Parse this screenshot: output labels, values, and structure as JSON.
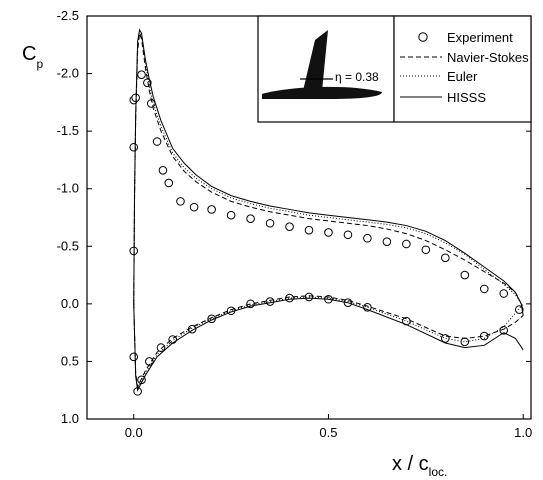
{
  "chart_data": {
    "type": "line",
    "title": "",
    "ylabel_main": "C",
    "ylabel_sub": "p",
    "xlabel_main": "x / c",
    "xlabel_sub": "loc.",
    "y_inverted": true,
    "xlim": [
      -0.12,
      1.02
    ],
    "ylim": [
      -2.5,
      1.0
    ],
    "xticks": [
      0.0,
      0.5,
      1.0
    ],
    "xtick_labels": [
      "0.0",
      "0.5",
      "1.0"
    ],
    "yticks": [
      -2.5,
      -2.0,
      -1.5,
      -1.0,
      -0.5,
      0.0,
      0.5,
      1.0
    ],
    "ytick_labels": [
      "-2.5",
      "-2.0",
      "-1.5",
      "-1.0",
      "-0.5",
      "0.0",
      "0.5",
      "1.0"
    ],
    "grid": false,
    "legend_position": "top-right",
    "inset_label": "η = 0.38",
    "series": [
      {
        "name": "Experiment",
        "style": "circle-markers",
        "upper": {
          "x": [
            0.0,
            0.0,
            0.0,
            0.005,
            0.02,
            0.035,
            0.045,
            0.06,
            0.075,
            0.09,
            0.12,
            0.155,
            0.2,
            0.25,
            0.3,
            0.35,
            0.4,
            0.45,
            0.5,
            0.55,
            0.6,
            0.65,
            0.7,
            0.75,
            0.8,
            0.85,
            0.9,
            0.95,
            0.99
          ],
          "y": [
            -0.46,
            -1.36,
            -1.77,
            -1.79,
            -1.99,
            -1.92,
            -1.74,
            -1.41,
            -1.16,
            -1.05,
            -0.89,
            -0.84,
            -0.82,
            -0.77,
            -0.74,
            -0.7,
            -0.67,
            -0.64,
            -0.62,
            -0.6,
            -0.57,
            -0.54,
            -0.52,
            -0.47,
            -0.4,
            -0.25,
            -0.13,
            -0.09,
            0.05
          ]
        },
        "lower": {
          "x": [
            0.0,
            0.01,
            0.02,
            0.04,
            0.07,
            0.1,
            0.15,
            0.2,
            0.25,
            0.3,
            0.35,
            0.4,
            0.45,
            0.5,
            0.55,
            0.6,
            0.7,
            0.8,
            0.85,
            0.9,
            0.95
          ],
          "y": [
            0.46,
            0.76,
            0.66,
            0.5,
            0.38,
            0.31,
            0.22,
            0.13,
            0.06,
            0.0,
            -0.02,
            -0.05,
            -0.06,
            -0.04,
            -0.01,
            0.03,
            0.15,
            0.3,
            0.33,
            0.28,
            0.23
          ]
        }
      },
      {
        "name": "Navier-Stokes",
        "style": "dashed",
        "upper": {
          "x": [
            0.0,
            0.002,
            0.005,
            0.01,
            0.015,
            0.02,
            0.03,
            0.04,
            0.05,
            0.07,
            0.1,
            0.13,
            0.16,
            0.2,
            0.25,
            0.3,
            0.35,
            0.4,
            0.45,
            0.5,
            0.55,
            0.6,
            0.65,
            0.7,
            0.75,
            0.8,
            0.85,
            0.9,
            0.95,
            0.98,
            0.995,
            1.0
          ],
          "y": [
            0.0,
            -0.9,
            -1.6,
            -2.2,
            -2.35,
            -2.3,
            -2.05,
            -1.85,
            -1.7,
            -1.5,
            -1.28,
            -1.15,
            -1.06,
            -0.97,
            -0.89,
            -0.84,
            -0.8,
            -0.77,
            -0.74,
            -0.72,
            -0.7,
            -0.68,
            -0.65,
            -0.61,
            -0.55,
            -0.47,
            -0.38,
            -0.28,
            -0.18,
            -0.1,
            0.0,
            0.1
          ]
        },
        "lower": {
          "x": [
            0.0,
            0.005,
            0.01,
            0.03,
            0.06,
            0.1,
            0.15,
            0.2,
            0.25,
            0.3,
            0.35,
            0.4,
            0.45,
            0.5,
            0.55,
            0.6,
            0.7,
            0.8,
            0.85,
            0.9,
            0.95,
            0.98,
            1.0
          ],
          "y": [
            0.0,
            0.6,
            0.72,
            0.58,
            0.42,
            0.3,
            0.2,
            0.12,
            0.05,
            0.0,
            -0.03,
            -0.06,
            -0.07,
            -0.06,
            -0.03,
            0.02,
            0.13,
            0.28,
            0.3,
            0.28,
            0.22,
            0.16,
            0.1
          ]
        }
      },
      {
        "name": "Euler",
        "style": "dotted",
        "upper": {
          "x": [
            0.0,
            0.002,
            0.005,
            0.01,
            0.015,
            0.02,
            0.03,
            0.04,
            0.05,
            0.07,
            0.1,
            0.13,
            0.16,
            0.2,
            0.25,
            0.3,
            0.35,
            0.4,
            0.45,
            0.5,
            0.55,
            0.6,
            0.65,
            0.7,
            0.75,
            0.8,
            0.85,
            0.9,
            0.95,
            0.98,
            0.995,
            1.0
          ],
          "y": [
            0.0,
            -0.9,
            -1.62,
            -2.25,
            -2.37,
            -2.33,
            -2.1,
            -1.9,
            -1.74,
            -1.54,
            -1.31,
            -1.18,
            -1.09,
            -1.0,
            -0.92,
            -0.87,
            -0.83,
            -0.8,
            -0.77,
            -0.75,
            -0.73,
            -0.71,
            -0.69,
            -0.66,
            -0.61,
            -0.53,
            -0.43,
            -0.3,
            -0.17,
            -0.08,
            0.0,
            0.05
          ]
        },
        "lower": {
          "x": [
            0.0,
            0.005,
            0.01,
            0.03,
            0.06,
            0.1,
            0.15,
            0.2,
            0.25,
            0.3,
            0.35,
            0.4,
            0.45,
            0.5,
            0.55,
            0.6,
            0.7,
            0.8,
            0.85,
            0.9,
            0.95,
            0.98,
            1.0
          ],
          "y": [
            0.0,
            0.62,
            0.74,
            0.6,
            0.44,
            0.32,
            0.21,
            0.13,
            0.06,
            0.01,
            -0.02,
            -0.05,
            -0.06,
            -0.05,
            -0.02,
            0.03,
            0.15,
            0.3,
            0.33,
            0.3,
            0.2,
            0.08,
            0.0
          ]
        }
      },
      {
        "name": "HISSS",
        "style": "solid",
        "upper": {
          "x": [
            0.0,
            0.002,
            0.005,
            0.01,
            0.015,
            0.02,
            0.03,
            0.04,
            0.05,
            0.07,
            0.1,
            0.13,
            0.16,
            0.2,
            0.25,
            0.3,
            0.35,
            0.4,
            0.45,
            0.5,
            0.55,
            0.6,
            0.65,
            0.7,
            0.75,
            0.8,
            0.85,
            0.9,
            0.95,
            0.98,
            0.995,
            1.0
          ],
          "y": [
            0.0,
            -0.95,
            -1.65,
            -2.28,
            -2.38,
            -2.35,
            -2.12,
            -1.95,
            -1.8,
            -1.59,
            -1.35,
            -1.22,
            -1.12,
            -1.02,
            -0.94,
            -0.89,
            -0.85,
            -0.82,
            -0.79,
            -0.77,
            -0.75,
            -0.73,
            -0.71,
            -0.68,
            -0.63,
            -0.55,
            -0.44,
            -0.32,
            -0.2,
            -0.1,
            0.0,
            0.1
          ]
        },
        "lower": {
          "x": [
            0.0,
            0.005,
            0.01,
            0.03,
            0.06,
            0.1,
            0.15,
            0.2,
            0.25,
            0.3,
            0.35,
            0.4,
            0.45,
            0.5,
            0.55,
            0.6,
            0.7,
            0.8,
            0.85,
            0.9,
            0.95,
            0.98,
            1.0
          ],
          "y": [
            0.0,
            0.63,
            0.75,
            0.62,
            0.46,
            0.34,
            0.23,
            0.14,
            0.07,
            0.02,
            -0.01,
            -0.04,
            -0.05,
            -0.04,
            -0.01,
            0.05,
            0.18,
            0.34,
            0.38,
            0.36,
            0.25,
            0.3,
            0.4
          ]
        }
      }
    ]
  }
}
